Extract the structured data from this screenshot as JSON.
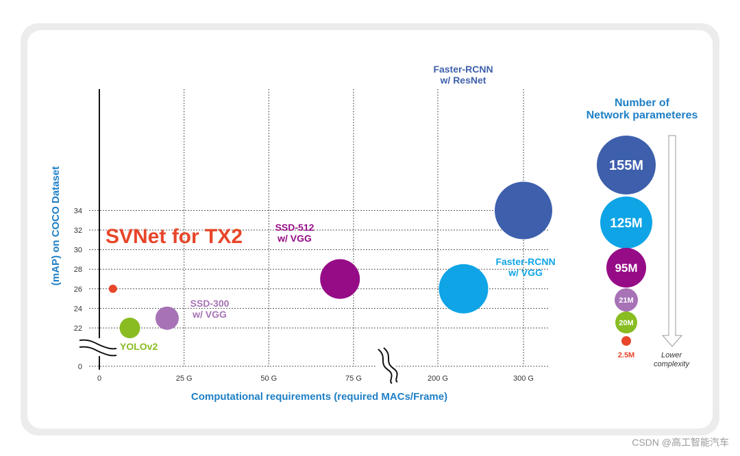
{
  "chart_data": {
    "type": "scatter",
    "title": "",
    "xlabel": "Computational requirements (required MACs/Frame)",
    "ylabel": "(mAP) on COCO Dataset",
    "x_ticks": [
      "0",
      "25 G",
      "50 G",
      "75 G",
      "200 G",
      "300 G"
    ],
    "y_ticks": [
      "0",
      "22",
      "24",
      "26",
      "28",
      "30",
      "32",
      "34"
    ],
    "x_axis_break": "between 75 G and 200 G",
    "y_axis_break": "between 0 and 22",
    "grid": true,
    "points": [
      {
        "name": "SVNet for TX2",
        "x_G": 4,
        "y": 26,
        "params": "2.5M",
        "color": "#e8462a"
      },
      {
        "name": "YOLOv2",
        "x_G": 9,
        "y": 22,
        "params": "20M",
        "color": "#88bc21"
      },
      {
        "name": "SSD-300 w/ VGG",
        "x_G": 20,
        "y": 23,
        "params": "21M",
        "color": "#a772b6"
      },
      {
        "name": "SSD-512 w/ VGG",
        "x_G": 71,
        "y": 27,
        "params": "95M",
        "color": "#960c87"
      },
      {
        "name": "Faster-RCNN w/ VGG",
        "x_G": 230,
        "y": 26,
        "params": "125M",
        "color": "#0ea4e6"
      },
      {
        "name": "Faster-RCNN w/ ResNet",
        "x_G": 300,
        "y": 34,
        "params": "155M",
        "color": "#3e5fac"
      }
    ],
    "labels": {
      "svnet": "SVNet for TX2",
      "yolo": "YOLOv2",
      "ssd300": [
        "SSD-300",
        "w/ VGG"
      ],
      "ssd512": [
        "SSD-512",
        "w/ VGG"
      ],
      "frcnn_vgg": [
        "Faster-RCNN",
        "w/ VGG"
      ],
      "frcnn_resnet": [
        "Faster-RCNN",
        "w/ ResNet"
      ]
    },
    "legend": {
      "title": [
        "Number of",
        "Network parameteres"
      ],
      "placement": "right",
      "entries": [
        {
          "label": "155M",
          "color": "#3e5fac"
        },
        {
          "label": "125M",
          "color": "#0ea4e6"
        },
        {
          "label": "95M",
          "color": "#960c87"
        },
        {
          "label": "21M",
          "color": "#a772b6"
        },
        {
          "label": "20M",
          "color": "#88bc21"
        },
        {
          "label": "2.5M",
          "color": "#e8462a"
        }
      ],
      "arrow_note": [
        "Lower",
        "complexity"
      ]
    }
  },
  "watermark": "CSDN @高工智能汽车"
}
